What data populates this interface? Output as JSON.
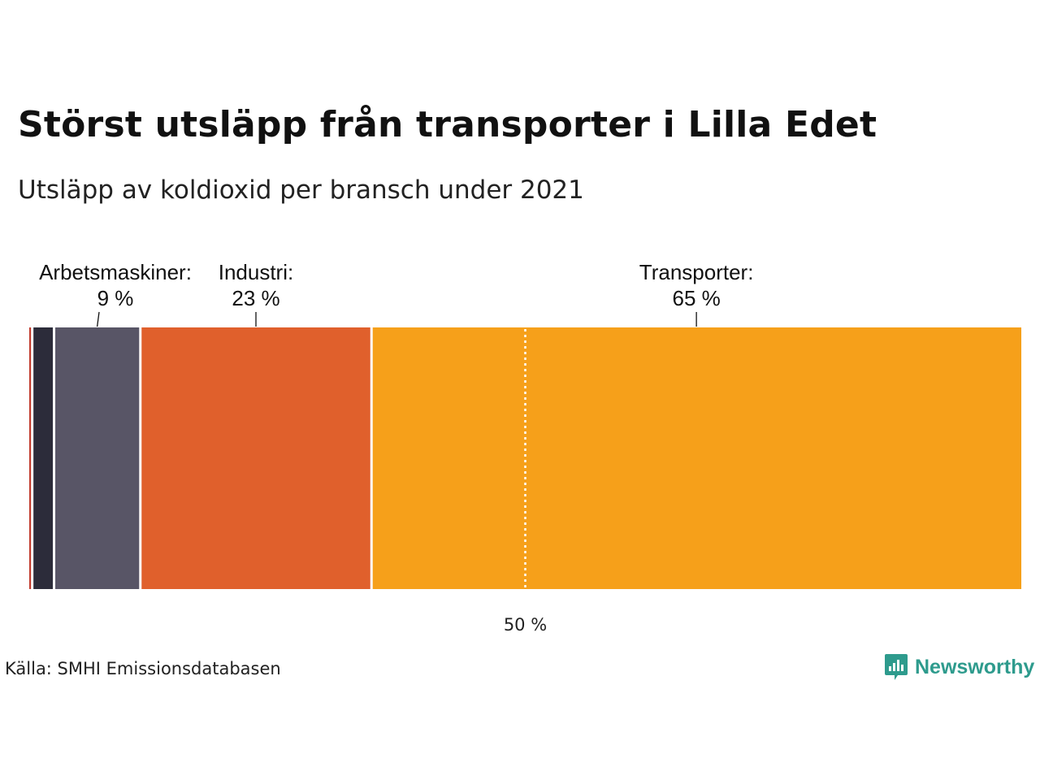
{
  "title": "Störst utsläpp från transporter i Lilla Edet",
  "subtitle": "Utsläpp av koldioxid per bransch under 2021",
  "source": "Källa: SMHI Emissionsdatabasen",
  "brand": {
    "name": "Newsworthy",
    "icon": "newsworthy-logo-icon",
    "color": "#2e9b8d"
  },
  "chart_data": {
    "type": "bar",
    "orientation": "horizontal-stacked-100",
    "categories": [
      {
        "value": 0.3,
        "color": "#c0392b"
      },
      {
        "value": 2.2,
        "color": "#2c2c3a"
      },
      {
        "label": "Arbetsmaskiner:",
        "value_label": "9 %",
        "value": 8.7,
        "color": "#585566"
      },
      {
        "label": "Industri:",
        "value_label": "23 %",
        "value": 23.3,
        "color": "#e0602c"
      },
      {
        "label": "Transporter:",
        "value_label": "65 %",
        "value": 65.5,
        "color": "#f6a01a"
      }
    ],
    "reference_line": {
      "value": 50,
      "label": "50 %"
    },
    "xlim": [
      0,
      100
    ]
  }
}
